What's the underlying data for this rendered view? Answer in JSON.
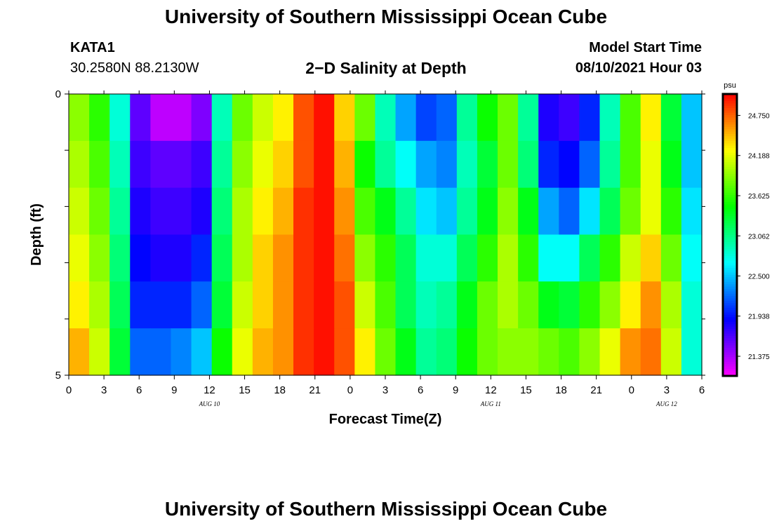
{
  "header": {
    "title": "University of Southern Mississippi Ocean Cube",
    "station_id": "KATA1",
    "coordinates": "30.2580N  88.2130W",
    "plot_title": "2−D Salinity at Depth",
    "model_label": "Model Start Time",
    "model_time": "08/10/2021 Hour 03"
  },
  "footer": {
    "title": "University of Southern Mississippi Ocean Cube"
  },
  "chart_data": {
    "type": "heatmap",
    "title": "2−D Salinity at Depth",
    "xlabel": "Forecast Time(Z)",
    "ylabel": "Depth (ft)",
    "x_ticks": [
      "0",
      "3",
      "6",
      "9",
      "12",
      "15",
      "18",
      "21",
      "0",
      "3",
      "6",
      "9",
      "12",
      "15",
      "18",
      "21",
      "0",
      "3",
      "6"
    ],
    "day_labels": [
      {
        "label": "AUG  10",
        "tick_index": 4
      },
      {
        "label": "AUG  11",
        "tick_index": 12
      },
      {
        "label": "AUG  12",
        "tick_index": 17
      }
    ],
    "y_ticks": [
      "0",
      "5"
    ],
    "ylim": [
      0,
      5
    ],
    "y_reversed": true,
    "colorbar": {
      "unit": "psu",
      "ticks": [
        24.75,
        24.188,
        23.625,
        23.062,
        22.5,
        21.938,
        21.375
      ],
      "tick_labels": [
        "24.750",
        "24.188",
        "23.625",
        "23.062",
        "22.500",
        "21.938",
        "21.375"
      ],
      "range": [
        21.1,
        25.05
      ]
    },
    "time_hours": [
      0,
      3,
      6,
      9,
      12,
      15,
      18,
      21,
      24,
      27,
      30,
      33,
      36,
      39,
      42,
      45,
      48,
      51,
      54
    ],
    "depth_rows_ft": [
      0,
      1,
      2,
      3,
      4,
      5
    ],
    "salinity_grid": [
      [
        23.9,
        23.6,
        22.8,
        21.6,
        21.3,
        21.3,
        21.5,
        22.9,
        23.8,
        24.1,
        24.3,
        24.8,
        25.0,
        24.4,
        23.8,
        22.9,
        22.4,
        22.1,
        22.2,
        23.0,
        23.5,
        23.8,
        23.0,
        21.8,
        21.7,
        22.0,
        22.9,
        23.7,
        24.3,
        23.3,
        22.5
      ],
      [
        24.0,
        23.7,
        22.9,
        21.7,
        21.6,
        21.6,
        21.7,
        23.0,
        23.9,
        24.2,
        24.4,
        24.8,
        25.0,
        24.5,
        23.5,
        23.0,
        22.7,
        22.4,
        22.3,
        22.9,
        23.3,
        23.8,
        23.1,
        22.0,
        21.9,
        22.2,
        23.0,
        23.7,
        24.2,
        23.4,
        22.5
      ],
      [
        24.1,
        23.8,
        23.0,
        21.8,
        21.7,
        21.7,
        21.8,
        23.1,
        24.0,
        24.3,
        24.5,
        24.9,
        25.0,
        24.6,
        23.7,
        23.4,
        23.0,
        22.6,
        22.5,
        23.0,
        23.4,
        23.9,
        23.4,
        22.4,
        22.2,
        22.6,
        23.2,
        23.8,
        24.2,
        23.6,
        22.6
      ],
      [
        24.2,
        23.9,
        23.1,
        21.9,
        21.8,
        21.8,
        22.0,
        23.2,
        24.0,
        24.4,
        24.6,
        24.9,
        25.0,
        24.7,
        23.9,
        23.6,
        23.2,
        22.8,
        22.8,
        23.2,
        23.6,
        24.0,
        23.6,
        22.7,
        22.7,
        23.2,
        23.6,
        24.1,
        24.4,
        23.8,
        22.7
      ],
      [
        24.3,
        24.0,
        23.2,
        22.0,
        22.0,
        22.0,
        22.2,
        23.3,
        24.1,
        24.4,
        24.6,
        24.9,
        25.0,
        24.8,
        24.1,
        23.7,
        23.2,
        22.9,
        23.0,
        23.4,
        23.8,
        24.0,
        23.8,
        23.4,
        23.3,
        23.6,
        23.9,
        24.3,
        24.6,
        24.0,
        22.8
      ],
      [
        24.5,
        24.1,
        23.3,
        22.2,
        22.2,
        22.3,
        22.5,
        23.5,
        24.2,
        24.5,
        24.6,
        24.9,
        25.0,
        24.8,
        24.3,
        23.8,
        23.4,
        23.0,
        23.1,
        23.5,
        23.8,
        23.9,
        23.9,
        23.8,
        23.7,
        23.9,
        24.2,
        24.6,
        24.7,
        24.1,
        22.8
      ]
    ]
  }
}
